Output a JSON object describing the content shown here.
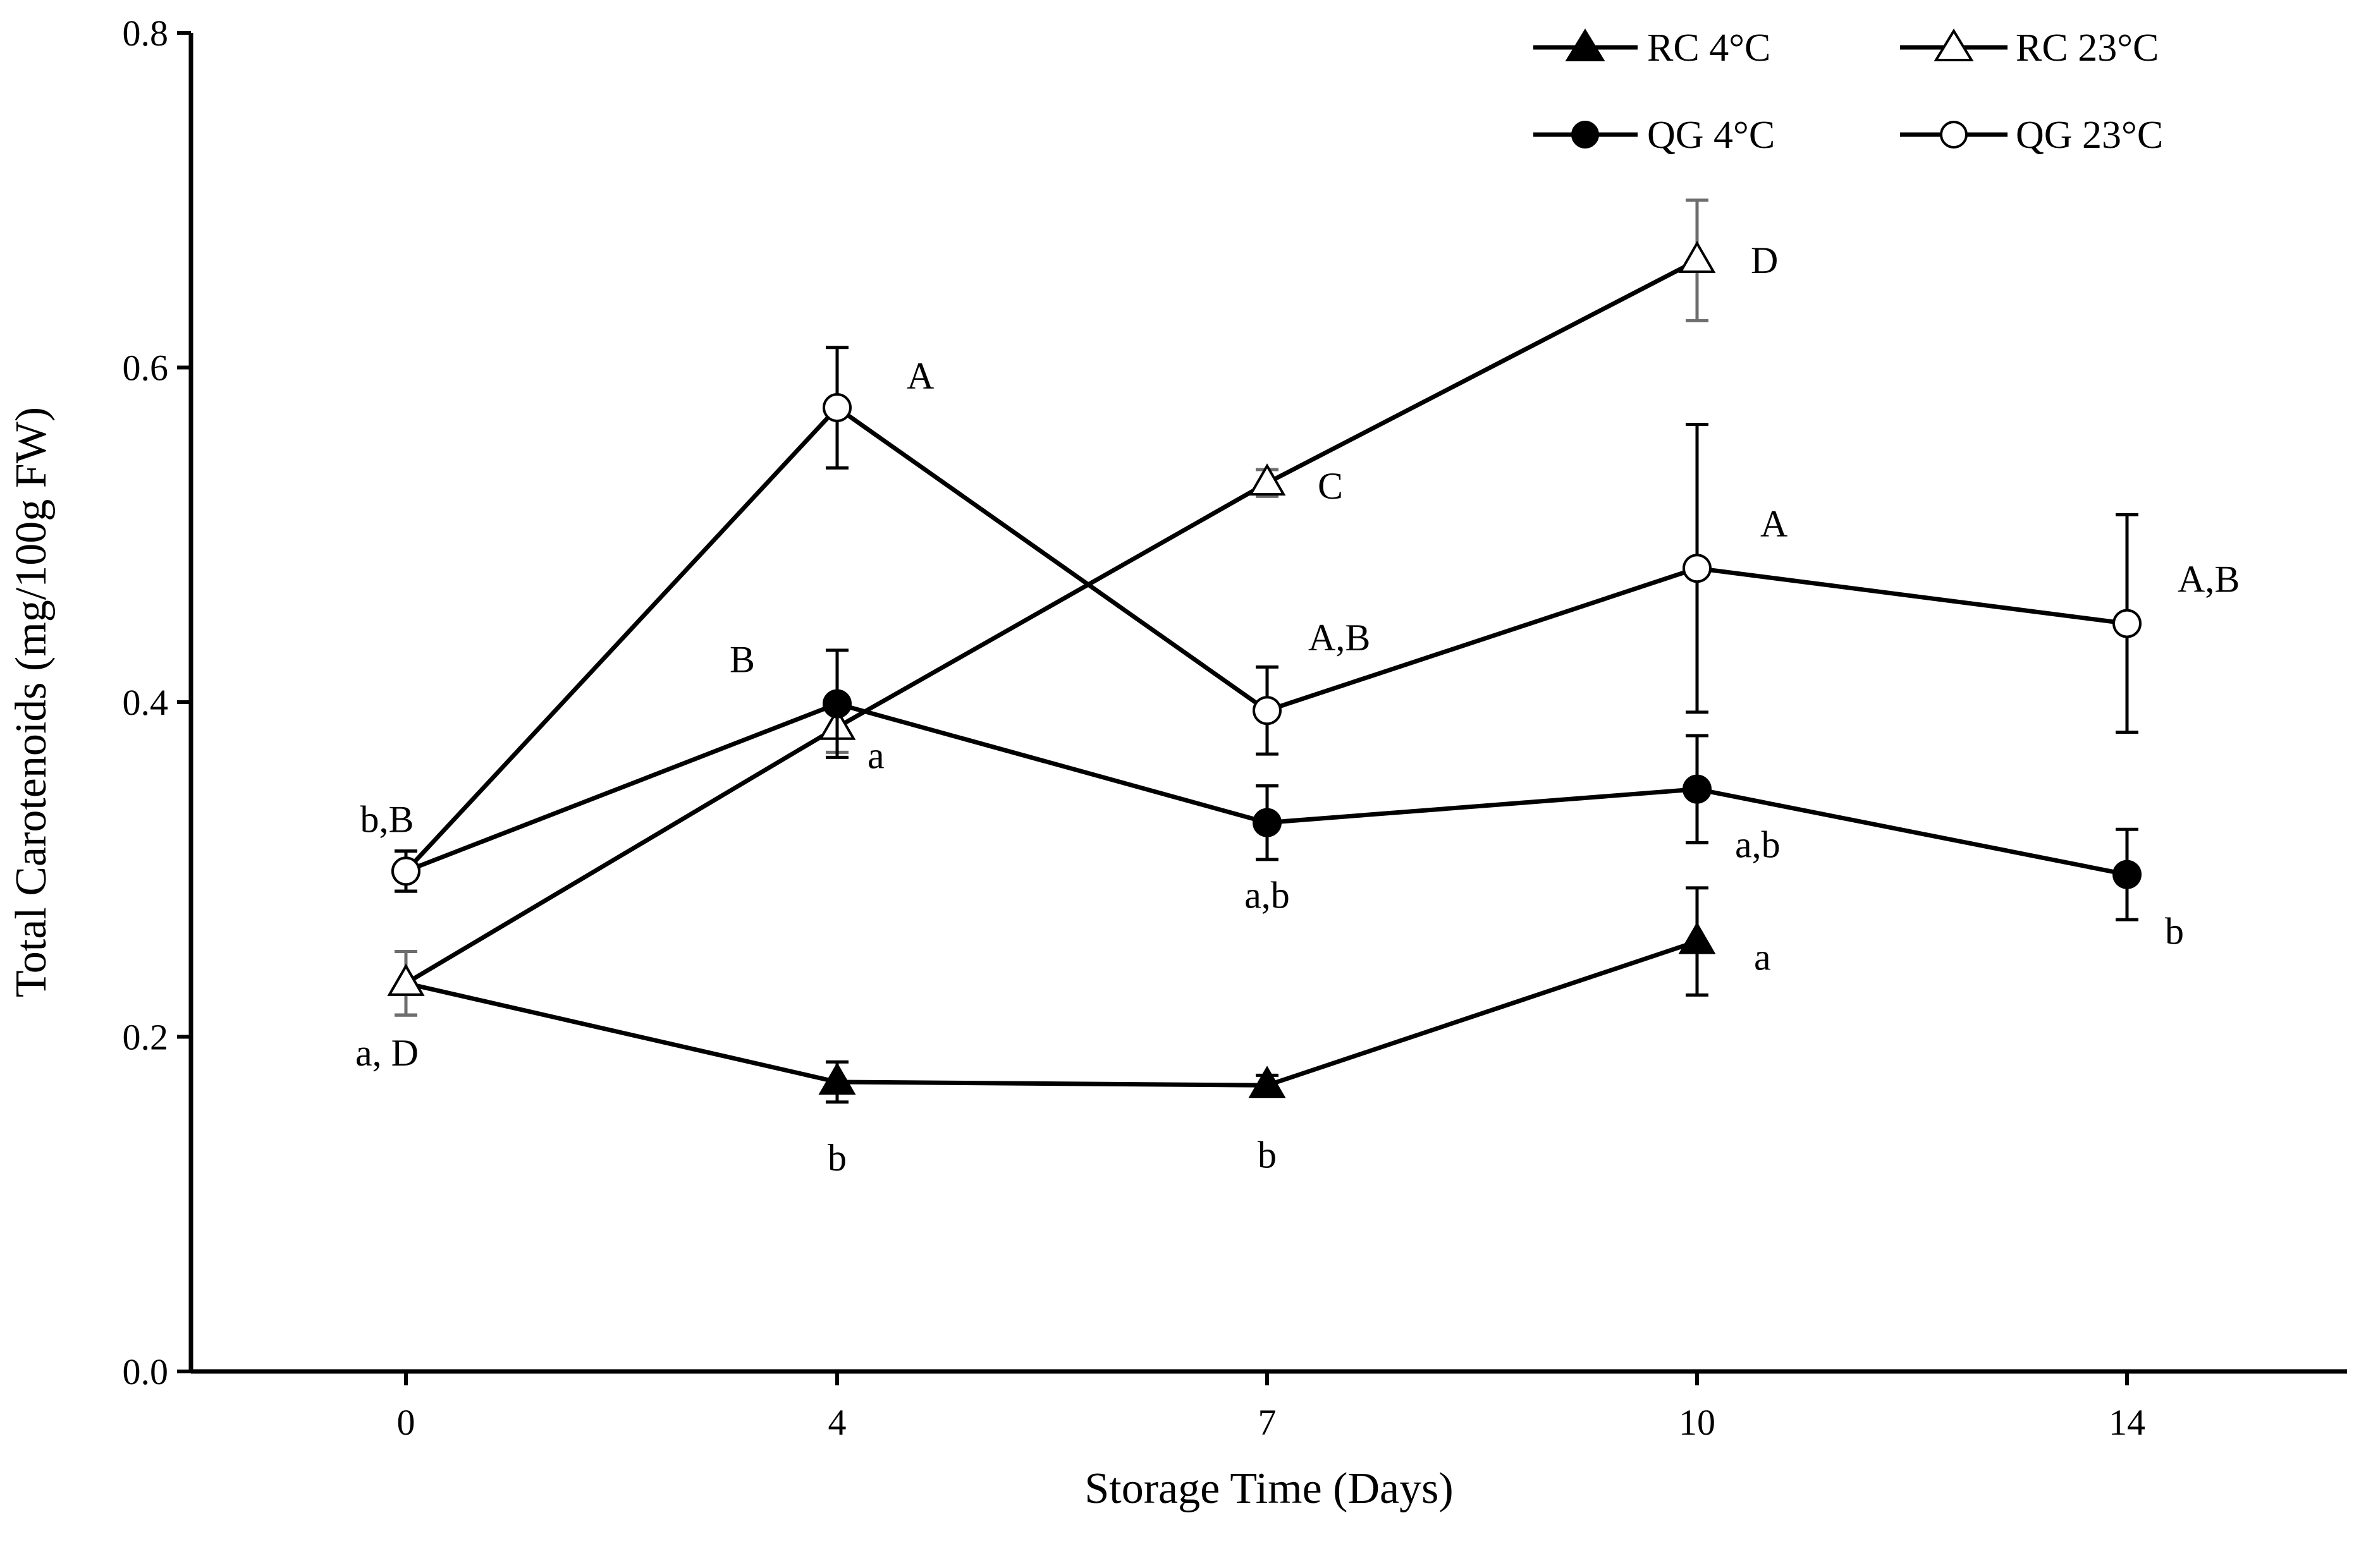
{
  "chart_data": {
    "type": "line",
    "title": "",
    "xlabel": "Storage Time (Days)",
    "ylabel": "Total Carotenoids (mg/100g FW)",
    "categories": [
      "0",
      "4",
      "7",
      "10",
      "14"
    ],
    "ylim": [
      0.0,
      0.8
    ],
    "yticks": [
      "0.0",
      "0.2",
      "0.4",
      "0.6",
      "0.8"
    ],
    "grid": false,
    "legend_position": "top-right",
    "series": [
      {
        "name": "RC 4°C",
        "marker": "filled-triangle",
        "values": [
          0.232,
          0.173,
          0.171,
          0.257,
          null
        ],
        "errors": [
          0.019,
          0.012,
          0.006,
          0.032,
          null
        ],
        "labels": [
          "",
          "b",
          "b",
          "a",
          ""
        ]
      },
      {
        "name": "RC 23°C",
        "marker": "open-triangle",
        "values": [
          0.232,
          0.385,
          0.531,
          0.664,
          null
        ],
        "errors": [
          0.019,
          0.015,
          0.008,
          0.036,
          null
        ],
        "labels": [
          "",
          "a",
          "C",
          "D",
          ""
        ]
      },
      {
        "name": "QG 4°C",
        "marker": "filled-circle",
        "values": [
          0.299,
          0.399,
          0.328,
          0.348,
          0.297
        ],
        "errors": [
          0.012,
          0.032,
          0.022,
          0.032,
          0.027
        ],
        "labels": [
          "",
          "B",
          "a,b",
          "a,b",
          "b"
        ]
      },
      {
        "name": "QG 23°C",
        "marker": "open-circle",
        "values": [
          0.299,
          0.576,
          0.395,
          0.48,
          0.447
        ],
        "errors": [
          0.012,
          0.036,
          0.026,
          0.086,
          0.065
        ],
        "labels": [
          "b,B",
          "A",
          "A,B",
          "A",
          "A,B"
        ]
      }
    ],
    "annotations_extra": [
      "a, D"
    ]
  },
  "colors": {
    "line": "#000000",
    "error_bar_light": "#6e6e6e",
    "background": "#ffffff"
  }
}
